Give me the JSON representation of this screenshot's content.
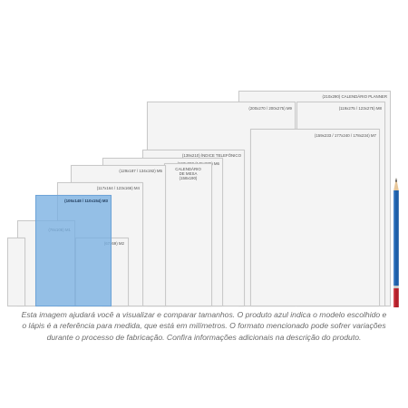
{
  "sheets": {
    "calendario_planner": "(210x290) CALENDÁRIO PLANNER",
    "m9": "(200x270 / 200x275) M9",
    "m8": "(119x275 / 123x275) M8",
    "m7": "(159x233 / 177x240 / 178x234) M7",
    "indice_telefonico": "(139x210) ÍNDICE TELEFÔNICO",
    "m6": "(160x200 /145x205) M6",
    "calendario_mesa_line1": "CALENDÁRIO",
    "calendario_mesa_line2": "DE MESA",
    "calendario_mesa_line3": "(158x190)",
    "m5": "(129x187 / 134x192) M5",
    "m4": "(117x164 / 123x166) M4",
    "m3": "(105x148 / 110x154) M3",
    "m1": "(78x108) M1",
    "m2": "(67x69) M2"
  },
  "colors": {
    "highlight": "#78afe1",
    "sheet": "#f4f4f4",
    "pencil_body": "#1e5fa8",
    "pencil_end": "#b3202a"
  },
  "caption": {
    "line1": "Esta imagem ajudará você a visualizar e comparar tamanhos. O produto azul indica o modelo escolhido e",
    "line2": "o lápis é a referência para medida, que está em milímetros. O formato mencionado pode sofrer variações",
    "line3": "durante o processo de fabricação. Confira informações adicionais na descrição do produto."
  }
}
